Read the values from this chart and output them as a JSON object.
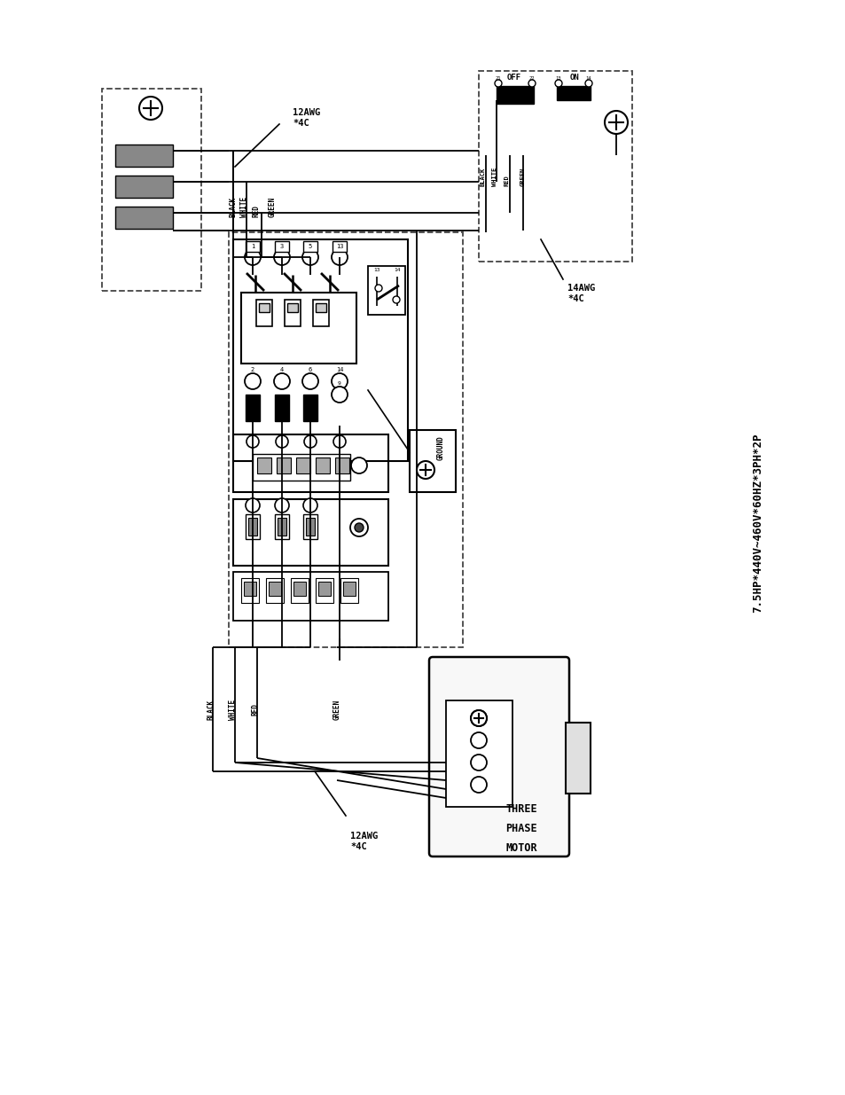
{
  "bg_color": "#ffffff",
  "title_text": "7.5HP*440V~460V*60HZ*3PH*2P",
  "label_12awg_top": "12AWG\n*4C",
  "label_14awg": "14AWG\n*4C",
  "label_12awg_bottom": "12AWG\n*4C",
  "motor_label_lines": [
    "THREE",
    "PHASE",
    "MOTOR"
  ],
  "off_label": "OFF",
  "on_label": "ON",
  "ground_label": "GROUND",
  "wire_colors_top": [
    "BLACK",
    "WHITE",
    "RED",
    "GREEN"
  ],
  "wire_colors_bottom": [
    "BLACK",
    "WHITE",
    "RED",
    "GREEN"
  ],
  "wire_colors_right": [
    "BLACK",
    "WHITE",
    "RED",
    "GREEN"
  ]
}
